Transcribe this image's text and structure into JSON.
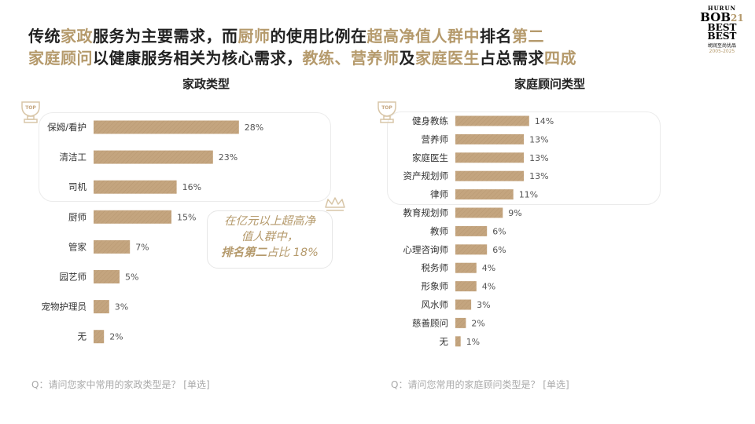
{
  "headline": {
    "line1": [
      {
        "text": "传统",
        "accent": false
      },
      {
        "text": "家政",
        "accent": true
      },
      {
        "text": "服务为主要需求，而",
        "accent": false
      },
      {
        "text": "厨师",
        "accent": true
      },
      {
        "text": "的使用比例在",
        "accent": false
      },
      {
        "text": "超高净值人群中",
        "accent": true
      },
      {
        "text": "排名",
        "accent": false
      },
      {
        "text": "第二",
        "accent": true
      }
    ],
    "line2": [
      {
        "text": "家庭顾问",
        "accent": true
      },
      {
        "text": "以健康服务相关为核心需求，",
        "accent": false
      },
      {
        "text": "教练、营养师",
        "accent": true
      },
      {
        "text": "及",
        "accent": false
      },
      {
        "text": "家庭医生",
        "accent": true
      },
      {
        "text": "占总需求",
        "accent": false
      },
      {
        "text": "四成",
        "accent": true
      }
    ]
  },
  "logo": {
    "top": "HURUN",
    "brand": "BOB",
    "num": "21",
    "best1": "BEST",
    "best2": "BEST",
    "sub": "胡润至尚优品",
    "years": "2005-2025"
  },
  "colors": {
    "bar": "#c4a57f",
    "accent": "#b59a6c",
    "question": "#aaaaaa"
  },
  "callout": {
    "line1": "在亿元以上超高净",
    "line2": "值人群中，",
    "line3_bold": "排名第二",
    "line3_rest": "占比 18%"
  },
  "questions": {
    "left": "Q：请问您家中常用的家政类型是？ [单选]",
    "right": "Q：请问您常用的家庭顾问类型是？ [单选]"
  },
  "badges": {
    "top_label": "TOP"
  },
  "chart_data": [
    {
      "type": "bar",
      "orientation": "horizontal",
      "title": "家政类型",
      "categories": [
        "保姆/看护",
        "清洁工",
        "司机",
        "厨师",
        "管家",
        "园艺师",
        "宠物护理员",
        "无"
      ],
      "values": [
        28,
        23,
        16,
        15,
        7,
        5,
        3,
        2
      ],
      "unit": "%",
      "highlight_top": 3
    },
    {
      "type": "bar",
      "orientation": "horizontal",
      "title": "家庭顾问类型",
      "categories": [
        "健身教练",
        "营养师",
        "家庭医生",
        "资产规划师",
        "律师",
        "教育规划师",
        "教师",
        "心理咨询师",
        "税务师",
        "形象师",
        "风水师",
        "慈善顾问",
        "无"
      ],
      "values": [
        14,
        13,
        13,
        13,
        11,
        9,
        6,
        6,
        4,
        4,
        3,
        2,
        1
      ],
      "unit": "%",
      "highlight_top": 5
    }
  ]
}
